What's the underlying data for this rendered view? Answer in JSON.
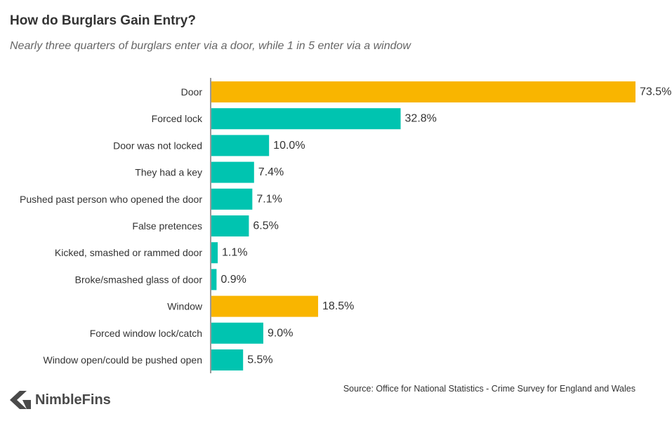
{
  "title": "How do Burglars Gain Entry?",
  "subtitle": "Nearly three quarters of burglars enter via a door, while 1 in 5 enter via a window",
  "source": "Source: Office for National Statistics - Crime Survey for England and Wales",
  "brand": "NimbleFins",
  "colors": {
    "highlight": "#F9B500",
    "standard": "#00C4B0",
    "axis": "#333333",
    "label": "#333333",
    "logo": "#4A4A4A"
  },
  "chart_data": {
    "type": "bar",
    "orientation": "horizontal",
    "title": "How do Burglars Gain Entry?",
    "subtitle": "Nearly three quarters of burglars enter via a door, while 1 in 5 enter via a window",
    "xlabel": "",
    "ylabel": "",
    "xlim": [
      0,
      73.5
    ],
    "grid": false,
    "legend": "none",
    "value_suffix": "%",
    "categories": [
      "Door",
      "Forced lock",
      "Door was not locked",
      "They had a key",
      "Pushed past person who opened the door",
      "False pretences",
      "Kicked, smashed or rammed door",
      "Broke/smashed glass of door",
      "Window",
      "Forced window lock/catch",
      "Window open/could be pushed open"
    ],
    "values": [
      73.5,
      32.8,
      10.0,
      7.4,
      7.1,
      6.5,
      1.1,
      0.9,
      18.5,
      9.0,
      5.5
    ],
    "value_labels": [
      "73.5%",
      "32.8%",
      "10.0%",
      "7.4%",
      "7.1%",
      "6.5%",
      "1.1%",
      "0.9%",
      "18.5%",
      "9.0%",
      "5.5%"
    ],
    "highlight": [
      true,
      false,
      false,
      false,
      false,
      false,
      false,
      false,
      true,
      false,
      false
    ]
  }
}
